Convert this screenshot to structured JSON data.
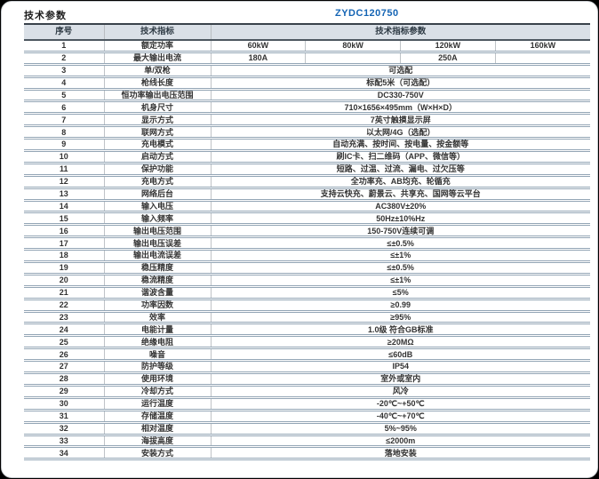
{
  "page": {
    "title": "技术参数",
    "model": "ZYDC120750",
    "model_color": "#1464b4",
    "header_bg": "#dae0e7"
  },
  "table": {
    "headers": [
      "序号",
      "技术指标",
      "技术指标参数"
    ],
    "rows": [
      {
        "no": "1",
        "name": "额定功率",
        "values": [
          "60kW",
          "80kW",
          "120kW",
          "160kW"
        ]
      },
      {
        "no": "2",
        "name": "最大输出电流",
        "values": [
          "180A",
          "",
          "250A",
          ""
        ]
      },
      {
        "no": "3",
        "name": "单/双枪",
        "value": "可选配"
      },
      {
        "no": "4",
        "name": "枪线长度",
        "value": "标配5米（可选配）"
      },
      {
        "no": "5",
        "name": "恒功率输出电压范围",
        "value": "DC330-750V"
      },
      {
        "no": "6",
        "name": "机身尺寸",
        "value": "710×1656×495mm（W×H×D）"
      },
      {
        "no": "7",
        "name": "显示方式",
        "value": "7英寸触摸显示屏"
      },
      {
        "no": "8",
        "name": "联网方式",
        "value": "以太网/4G（选配）"
      },
      {
        "no": "9",
        "name": "充电模式",
        "value": "自动充满、按时间、按电量、按金额等"
      },
      {
        "no": "10",
        "name": "启动方式",
        "value": "刷IC卡、扫二维码（APP、微信等）"
      },
      {
        "no": "11",
        "name": "保护功能",
        "value": "短路、过温、过流、漏电、过欠压等"
      },
      {
        "no": "12",
        "name": "充电方式",
        "value": "全功率充、AB均充、轮循充"
      },
      {
        "no": "13",
        "name": "网络后台",
        "value": "支持云快充、蔚景云、共享充、国网等云平台"
      },
      {
        "no": "14",
        "name": "输入电压",
        "value": "AC380V±20%"
      },
      {
        "no": "15",
        "name": "输入频率",
        "value": "50Hz±10%Hz"
      },
      {
        "no": "16",
        "name": "输出电压范围",
        "value": "150-750V连续可调"
      },
      {
        "no": "17",
        "name": "输出电压误差",
        "value": "≤±0.5%"
      },
      {
        "no": "18",
        "name": "输出电流误差",
        "value": "≤±1%"
      },
      {
        "no": "19",
        "name": "稳压精度",
        "value": "≤±0.5%"
      },
      {
        "no": "20",
        "name": "稳流精度",
        "value": "≤±1%"
      },
      {
        "no": "21",
        "name": "谐波含量",
        "value": "≤5%"
      },
      {
        "no": "22",
        "name": "功率因数",
        "value": "≥0.99"
      },
      {
        "no": "23",
        "name": "效率",
        "value": "≥95%"
      },
      {
        "no": "24",
        "name": "电能计量",
        "value": "1.0级 符合GB标准"
      },
      {
        "no": "25",
        "name": "绝缘电阻",
        "value": "≥20MΩ"
      },
      {
        "no": "26",
        "name": "噪音",
        "value": "≤60dB"
      },
      {
        "no": "27",
        "name": "防护等级",
        "value": "IP54"
      },
      {
        "no": "28",
        "name": "使用环境",
        "value": "室外或室内"
      },
      {
        "no": "29",
        "name": "冷却方式",
        "value": "风冷"
      },
      {
        "no": "30",
        "name": "运行温度",
        "value": "-20℃~+50℃"
      },
      {
        "no": "31",
        "name": "存储温度",
        "value": "-40℃~+70℃"
      },
      {
        "no": "32",
        "name": "相对温度",
        "value": "5%~95%"
      },
      {
        "no": "33",
        "name": "海拔高度",
        "value": "≤2000m"
      },
      {
        "no": "34",
        "name": "安装方式",
        "value": "落地安装"
      }
    ]
  }
}
